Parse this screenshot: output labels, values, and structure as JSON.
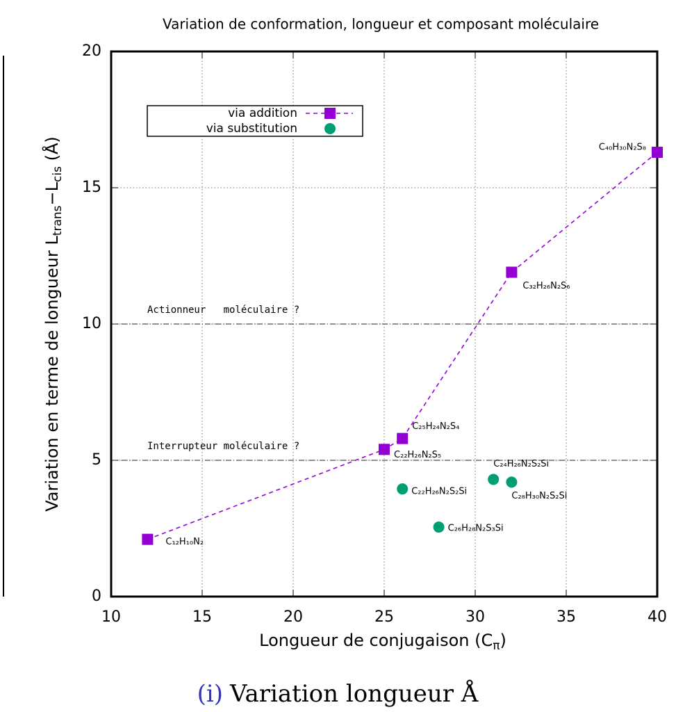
{
  "chart_data": {
    "type": "scatter",
    "title": "Variation de conformation, longueur et composant  moléculaire",
    "xlabel": [
      "Longueur de conjugaison (C",
      "π",
      ")"
    ],
    "ylabel": [
      "Variation en terme de longueur L",
      "trans",
      "−L",
      "cis",
      "  (Å)"
    ],
    "xlim": [
      10,
      40
    ],
    "xticks": [
      10,
      15,
      20,
      25,
      30,
      35,
      40
    ],
    "ylim": [
      0,
      20
    ],
    "yticks": [
      0,
      5,
      10,
      15,
      20
    ],
    "grid": true,
    "legend": "upper left",
    "series": [
      {
        "name": "via addition",
        "color": "#9400d3",
        "marker": "square",
        "line": "dashed",
        "x": [
          12,
          25,
          26,
          32,
          40
        ],
        "values": [
          2.1,
          5.4,
          5.8,
          11.9,
          16.3
        ],
        "point_labels": [
          "C₁₂H₁₀N₂",
          "C₂₂H₂₆N₂S₅",
          "C₂₅H₂₄N₂S₄",
          "C₃₂H₂₆N₂S₆",
          "C₄₀H₃₀N₂S₈"
        ]
      },
      {
        "name": "via substitution",
        "color": "#009e73",
        "marker": "circle",
        "line": "none",
        "x": [
          26,
          28,
          31,
          32
        ],
        "values": [
          3.95,
          2.55,
          4.3,
          4.2
        ],
        "point_labels": [
          "C₂₂H₂₆N₂S₂Si",
          "C₂₆H₂₈N₂S₃Si",
          "C₂₄H₂₆N₂S₂Si",
          "C₂₈H₃₀N₂S₂Si"
        ]
      }
    ],
    "reference_lines": [
      {
        "y": 10,
        "label": "Actionneur   moléculaire ?"
      },
      {
        "y": 5,
        "label": "Interrupteur moléculaire ?"
      }
    ],
    "caption_number": "(i)",
    "caption": "Variation longueur Å"
  }
}
